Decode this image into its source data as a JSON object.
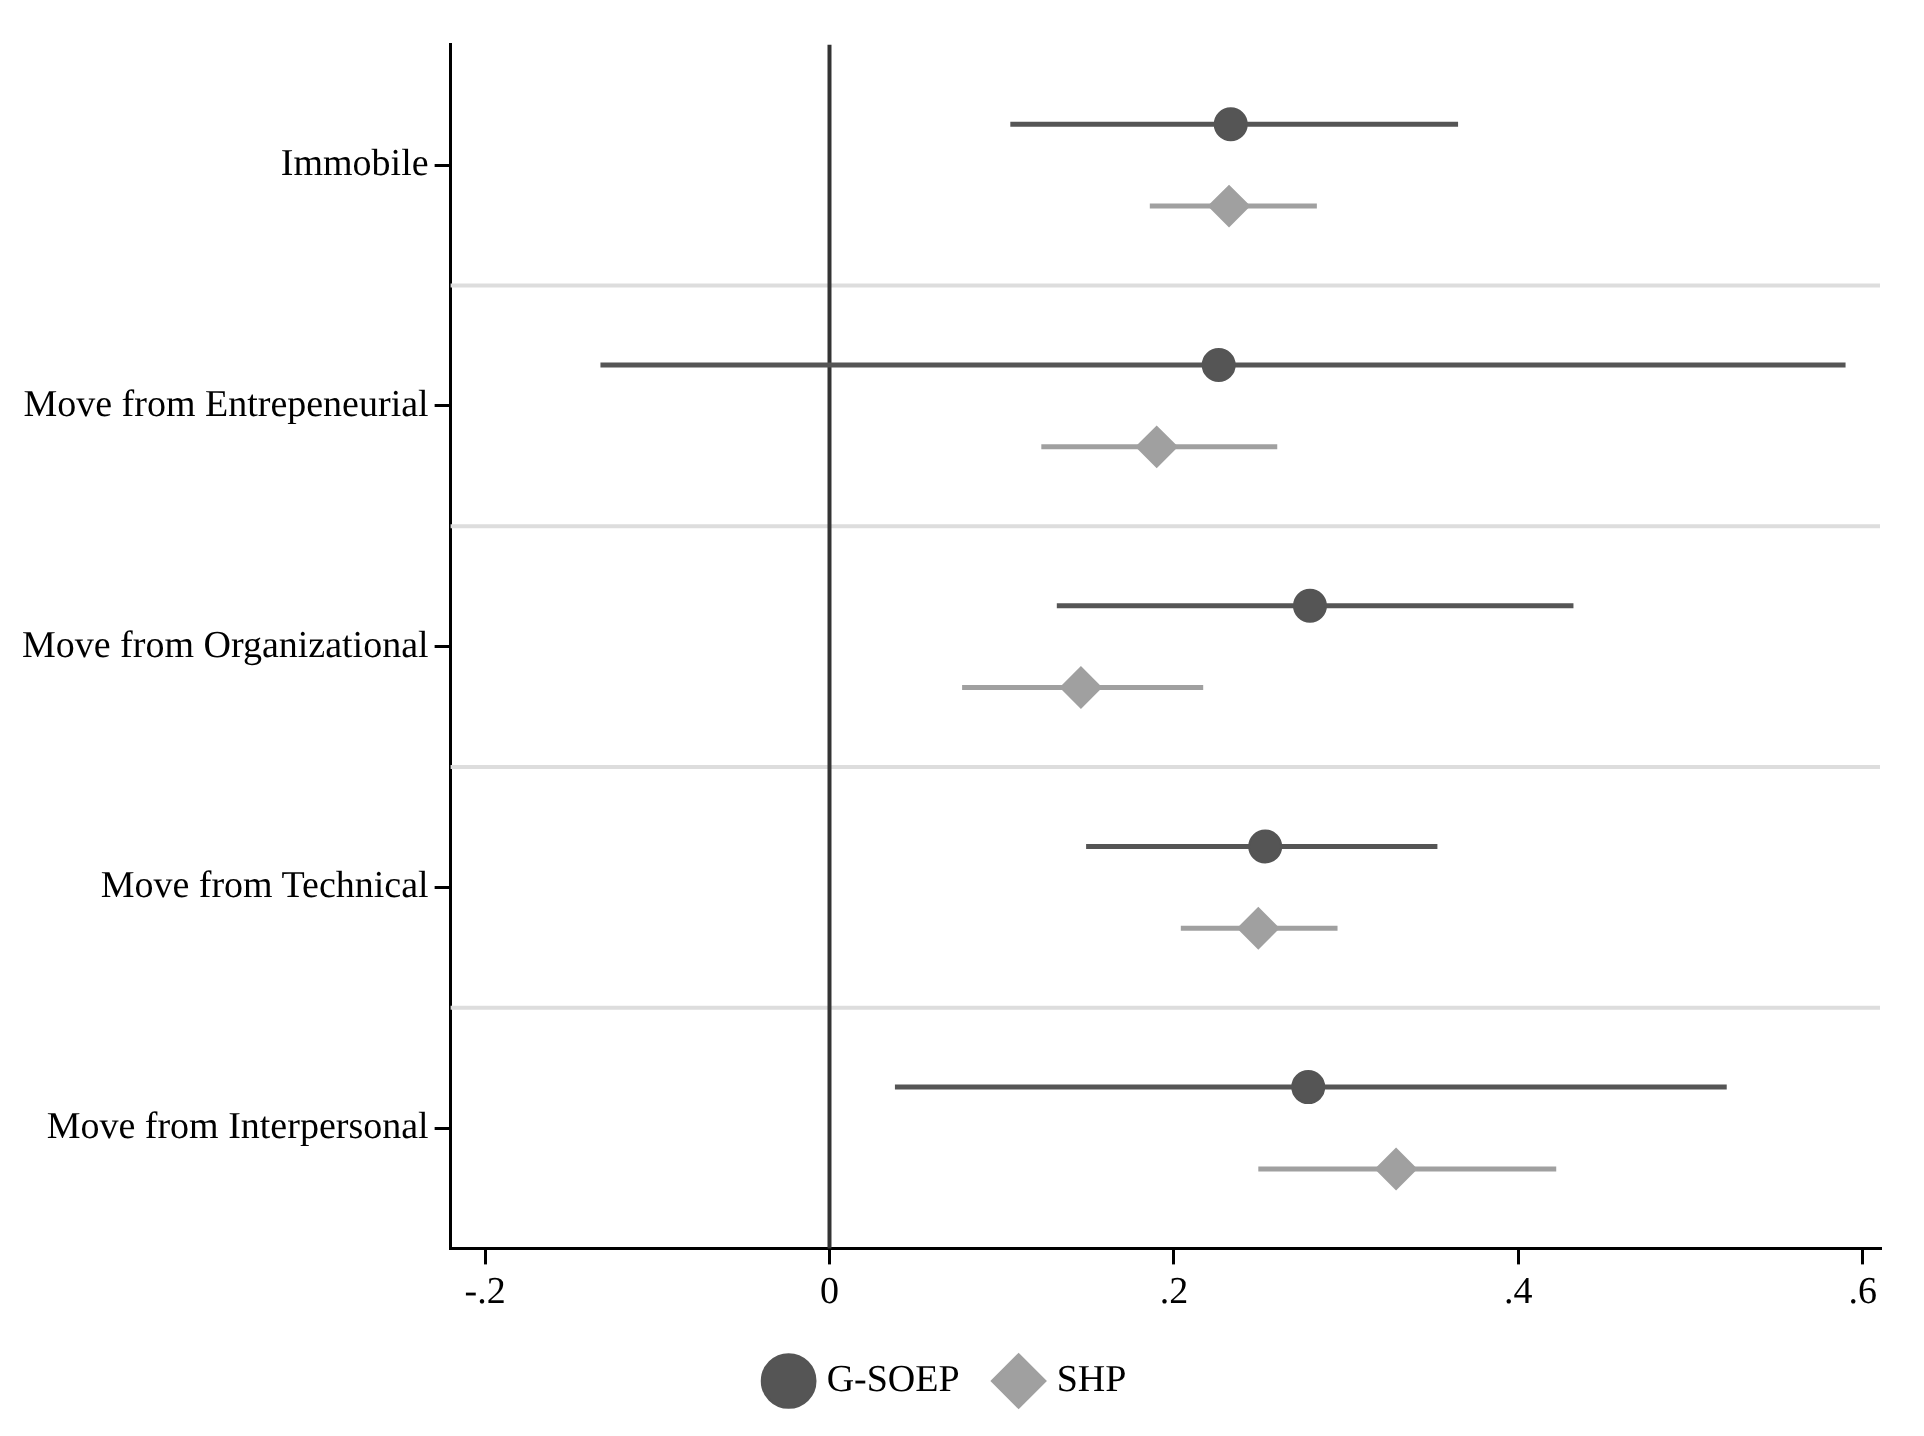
{
  "chart_data": {
    "type": "scatter",
    "orientation": "horizontal",
    "categories": [
      "Immobile",
      "Move from Entrepeneurial",
      "Move from Organizational",
      "Move from Technical",
      "Move from Interpersonal"
    ],
    "series": [
      {
        "name": "G-SOEP",
        "color": "#555555",
        "marker": "circle",
        "values": [
          0.233,
          0.226,
          0.279,
          0.253,
          0.278
        ],
        "errors": [
          [
            0.105,
            0.365
          ],
          [
            -0.133,
            0.59
          ],
          [
            0.132,
            0.432
          ],
          [
            0.149,
            0.353
          ],
          [
            0.038,
            0.521
          ]
        ]
      },
      {
        "name": "SHP",
        "color": "#a0a0a0",
        "marker": "diamond",
        "values": [
          0.232,
          0.19,
          0.146,
          0.249,
          0.329
        ],
        "errors": [
          [
            0.186,
            0.283
          ],
          [
            0.123,
            0.26
          ],
          [
            0.077,
            0.217
          ],
          [
            0.204,
            0.295
          ],
          [
            0.249,
            0.422
          ]
        ]
      }
    ],
    "xlim": [
      -0.22,
      0.61
    ],
    "xticks": [
      {
        "value": -0.2,
        "label": "-.2"
      },
      0,
      {
        "value": 0.2,
        "label": ".2"
      },
      {
        "value": 0.4,
        "label": ".4"
      },
      {
        "value": 0.6,
        "label": ".6"
      }
    ],
    "ref_lines": [
      {
        "axis": "x",
        "value": 0,
        "color": "#333333"
      }
    ],
    "grid": "y",
    "legend": "bottom"
  }
}
